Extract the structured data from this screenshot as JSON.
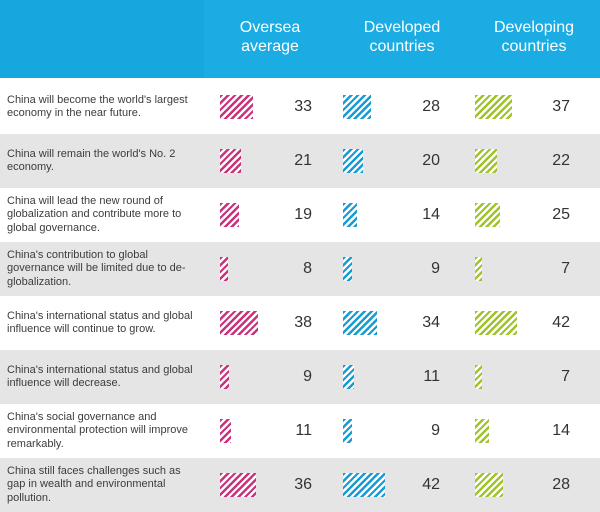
{
  "chart_data": {
    "type": "table",
    "columns": [
      "Oversea average",
      "Developed countries",
      "Developing countries"
    ],
    "column_lines": [
      [
        "Oversea",
        "average"
      ],
      [
        "Developed",
        "countries"
      ],
      [
        "Developing",
        "countries"
      ]
    ],
    "colors": {
      "oversea": "#c9337a",
      "developed": "#169bd5",
      "developing": "#9ec42a",
      "header": "#17a7df"
    },
    "rows": [
      {
        "statement": "China will become the world's largest economy in the near future.",
        "values": [
          33,
          28,
          37
        ]
      },
      {
        "statement": "China will remain the world's No. 2 economy.",
        "values": [
          21,
          20,
          22
        ]
      },
      {
        "statement": "China will lead the new round of globalization and contribute more to global governance.",
        "values": [
          19,
          14,
          25
        ]
      },
      {
        "statement": "China's contribution to global governance will be limited due to de-globalization.",
        "values": [
          8,
          9,
          7
        ]
      },
      {
        "statement": "China's international status and global influence will continue to grow.",
        "values": [
          38,
          34,
          42
        ]
      },
      {
        "statement": "China's international status and global influence will decrease.",
        "values": [
          9,
          11,
          7
        ]
      },
      {
        "statement": "China's social governance and environmental protection will improve remarkably.",
        "values": [
          11,
          9,
          14
        ]
      },
      {
        "statement": "China still faces challenges such as gap in wealth and environmental pollution.",
        "values": [
          36,
          42,
          28
        ]
      }
    ]
  }
}
